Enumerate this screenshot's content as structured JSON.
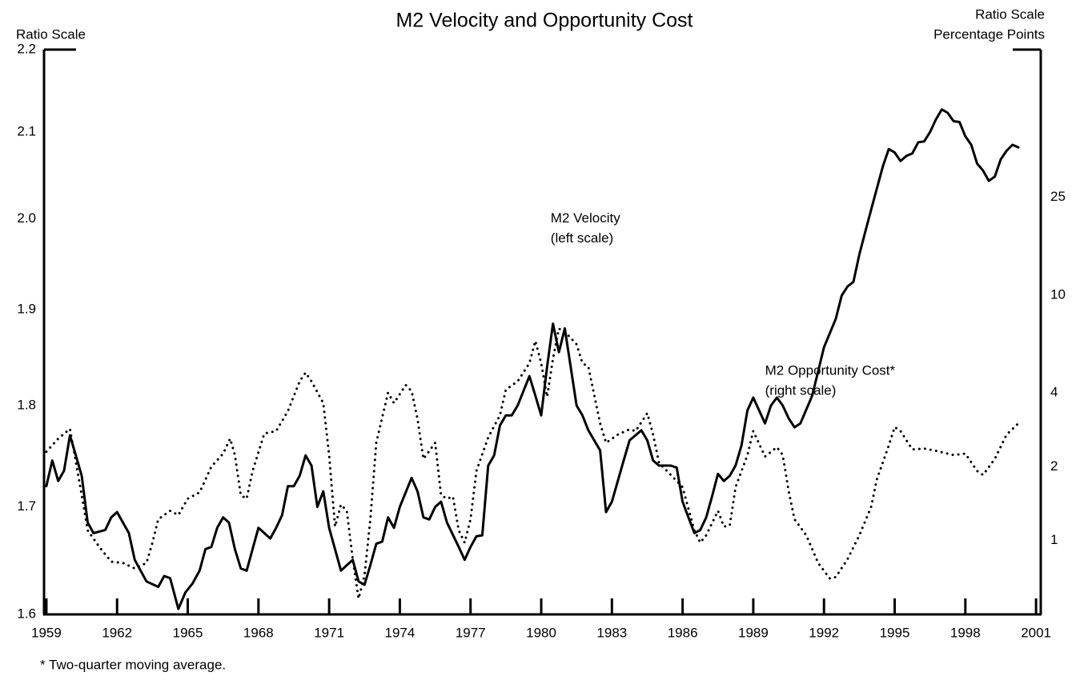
{
  "chart_data": {
    "type": "line",
    "title": "M2 Velocity and Opportunity Cost",
    "y_label": "Ratio Scale",
    "y2_label": [
      "Ratio Scale",
      "Percentage Points"
    ],
    "annotations": [
      {
        "lines": [
          "M2 Velocity",
          "(left scale)"
        ],
        "x": 1980.4,
        "y": 2.0
      },
      {
        "lines": [
          "M2 Opportunity Cost*",
          "(right scale)"
        ],
        "x": 1989.5,
        "y": 1.835
      }
    ],
    "footnote": "* Two-quarter moving average.",
    "xlim": [
      1958.9,
      2001.2
    ],
    "xticks": [
      1959,
      1962,
      1965,
      1968,
      1971,
      1974,
      1977,
      1980,
      1983,
      1986,
      1989,
      1992,
      1995,
      1998,
      2001
    ],
    "ylim": [
      1.6,
      2.2
    ],
    "ylog": true,
    "yticks": [
      1.6,
      1.7,
      1.8,
      1.9,
      {
        "value": 2,
        "label": "2.0"
      },
      2.1,
      2.2
    ],
    "y2lim": [
      0.5,
      100
    ],
    "y2log": true,
    "y2ticks": [
      1,
      2,
      4,
      10,
      25
    ],
    "series": [
      {
        "name": "M2 Velocity",
        "color": "#000000",
        "style": "solid",
        "x": [
          1959,
          1959.25,
          1959.5,
          1959.75,
          1960,
          1960.5,
          1960.75,
          1961,
          1961.5,
          1961.75,
          1962,
          1962.5,
          1962.75,
          1963.25,
          1963.75,
          1964,
          1964.25,
          1964.6,
          1964.9,
          1965.2,
          1965.5,
          1965.75,
          1966,
          1966.25,
          1966.5,
          1966.75,
          1967,
          1967.25,
          1967.5,
          1967.75,
          1968,
          1968.5,
          1968.75,
          1969,
          1969.25,
          1969.5,
          1969.75,
          1970,
          1970.25,
          1970.5,
          1970.75,
          1971,
          1971.5,
          1971.75,
          1972,
          1972.25,
          1972.5,
          1972.75,
          1973,
          1973.25,
          1973.5,
          1973.75,
          1974,
          1974.5,
          1974.75,
          1975,
          1975.25,
          1975.5,
          1975.75,
          1976,
          1976.5,
          1976.75,
          1977,
          1977.25,
          1977.5,
          1977.75,
          1978,
          1978.25,
          1978.5,
          1978.75,
          1979,
          1979.5,
          1979.75,
          1980,
          1980.25,
          1980.5,
          1980.75,
          1981,
          1981.5,
          1981.75,
          1982,
          1982.5,
          1982.75,
          1983,
          1983.25,
          1983.5,
          1983.75,
          1984,
          1984.25,
          1984.5,
          1984.75,
          1985,
          1985.5,
          1985.75,
          1986,
          1986.5,
          1986.75,
          1987,
          1987.25,
          1987.5,
          1987.75,
          1988,
          1988.25,
          1988.5,
          1988.75,
          1989,
          1989.5,
          1989.75,
          1990,
          1990.25,
          1990.5,
          1990.75,
          1991,
          1991.5,
          1991.75,
          1992,
          1992.5,
          1992.75,
          1993,
          1993.25,
          1993.5,
          1993.75,
          1994,
          1994.5,
          1994.75,
          1995,
          1995.25,
          1995.5,
          1995.75,
          1996,
          1996.25,
          1996.5,
          1996.75,
          1997,
          1997.25,
          1997.5,
          1997.75,
          1998,
          1998.25,
          1998.5,
          1998.75,
          1999,
          1999.25,
          1999.5,
          1999.75,
          2000,
          2000.25
        ],
        "values": [
          1.72,
          1.745,
          1.725,
          1.735,
          1.77,
          1.73,
          1.685,
          1.675,
          1.678,
          1.69,
          1.695,
          1.675,
          1.65,
          1.63,
          1.625,
          1.635,
          1.633,
          1.605,
          1.62,
          1.628,
          1.64,
          1.66,
          1.662,
          1.68,
          1.69,
          1.685,
          1.66,
          1.642,
          1.64,
          1.66,
          1.68,
          1.67,
          1.68,
          1.692,
          1.72,
          1.72,
          1.73,
          1.75,
          1.74,
          1.7,
          1.715,
          1.68,
          1.64,
          1.645,
          1.65,
          1.63,
          1.627,
          1.645,
          1.665,
          1.667,
          1.69,
          1.68,
          1.7,
          1.728,
          1.715,
          1.69,
          1.688,
          1.7,
          1.705,
          1.685,
          1.662,
          1.65,
          1.662,
          1.672,
          1.673,
          1.74,
          1.75,
          1.78,
          1.79,
          1.79,
          1.8,
          1.83,
          1.81,
          1.79,
          1.84,
          1.885,
          1.855,
          1.88,
          1.8,
          1.79,
          1.775,
          1.755,
          1.695,
          1.705,
          1.725,
          1.745,
          1.765,
          1.77,
          1.775,
          1.765,
          1.745,
          1.74,
          1.74,
          1.738,
          1.705,
          1.675,
          1.678,
          1.69,
          1.71,
          1.732,
          1.725,
          1.73,
          1.74,
          1.76,
          1.795,
          1.808,
          1.782,
          1.8,
          1.808,
          1.8,
          1.787,
          1.778,
          1.782,
          1.81,
          1.835,
          1.86,
          1.89,
          1.915,
          1.925,
          1.93,
          1.96,
          1.985,
          2.01,
          2.06,
          2.08,
          2.076,
          2.066,
          2.072,
          2.075,
          2.088,
          2.089,
          2.1,
          2.115,
          2.127,
          2.123,
          2.113,
          2.112,
          2.095,
          2.085,
          2.063,
          2.055,
          2.043,
          2.048,
          2.068,
          2.078,
          2.085,
          2.082
        ]
      },
      {
        "name": "M2 Opportunity Cost",
        "color": "#000000",
        "style": "dotted",
        "axis": "y2",
        "x": [
          1959,
          1959.5,
          1960,
          1960.5,
          1960.75,
          1961.25,
          1961.75,
          1962.25,
          1962.75,
          1963.25,
          1963.5,
          1963.75,
          1964.25,
          1964.6,
          1965,
          1965.5,
          1966,
          1966.5,
          1966.8,
          1967,
          1967.25,
          1967.5,
          1967.75,
          1968.25,
          1968.75,
          1969.25,
          1969.75,
          1970,
          1970.25,
          1970.75,
          1971,
          1971.25,
          1971.5,
          1971.75,
          1972,
          1972.25,
          1972.5,
          1972.75,
          1973,
          1973.5,
          1973.75,
          1974.25,
          1974.5,
          1974.75,
          1975,
          1975.5,
          1975.75,
          1976,
          1976.25,
          1976.5,
          1976.75,
          1977,
          1977.25,
          1977.75,
          1978.25,
          1978.5,
          1979,
          1979.5,
          1979.75,
          1980,
          1980.25,
          1980.5,
          1980.75,
          1981,
          1981.5,
          1981.75,
          1982,
          1982.5,
          1982.75,
          1983.25,
          1983.75,
          1984,
          1984.5,
          1984.75,
          1985,
          1985.5,
          1986,
          1986.5,
          1986.75,
          1987,
          1987.5,
          1987.75,
          1988,
          1988.25,
          1988.75,
          1989,
          1989.5,
          1990,
          1990.25,
          1990.5,
          1990.75,
          1991.25,
          1991.75,
          1992.25,
          1992.5,
          1993,
          1993.5,
          1994,
          1994.25,
          1994.75,
          1995,
          1995.25,
          1995.75,
          1996.25,
          1996.75,
          1997.5,
          1998,
          1998.5,
          1998.75,
          1999.25,
          1999.75,
          2000.25
        ],
        "values": [
          2.3,
          2.6,
          2.85,
          1.53,
          1.1,
          0.94,
          0.82,
          0.81,
          0.77,
          0.81,
          0.98,
          1.22,
          1.32,
          1.27,
          1.48,
          1.57,
          2.0,
          2.26,
          2.6,
          2.23,
          1.53,
          1.48,
          1.92,
          2.73,
          2.79,
          3.37,
          4.45,
          4.83,
          4.45,
          3.63,
          2.23,
          1.14,
          1.4,
          1.32,
          0.84,
          0.58,
          0.72,
          1.22,
          2.5,
          4.0,
          3.63,
          4.3,
          4.06,
          3.13,
          2.15,
          2.5,
          1.53,
          1.48,
          1.51,
          1.1,
          0.98,
          1.22,
          1.92,
          2.63,
          3.24,
          4.12,
          4.45,
          5.28,
          6.5,
          5.28,
          3.85,
          5.5,
          7.3,
          7.1,
          6.3,
          5.28,
          5.1,
          3.0,
          2.5,
          2.7,
          2.84,
          2.79,
          3.3,
          2.7,
          2.07,
          1.85,
          1.65,
          1.1,
          0.98,
          1.05,
          1.32,
          1.14,
          1.15,
          1.65,
          2.23,
          2.79,
          2.2,
          2.4,
          2.23,
          1.59,
          1.22,
          1.05,
          0.81,
          0.7,
          0.71,
          0.84,
          1.05,
          1.37,
          1.78,
          2.44,
          2.9,
          2.79,
          2.35,
          2.37,
          2.32,
          2.23,
          2.26,
          1.92,
          1.85,
          2.15,
          2.7,
          3.0
        ]
      }
    ]
  }
}
